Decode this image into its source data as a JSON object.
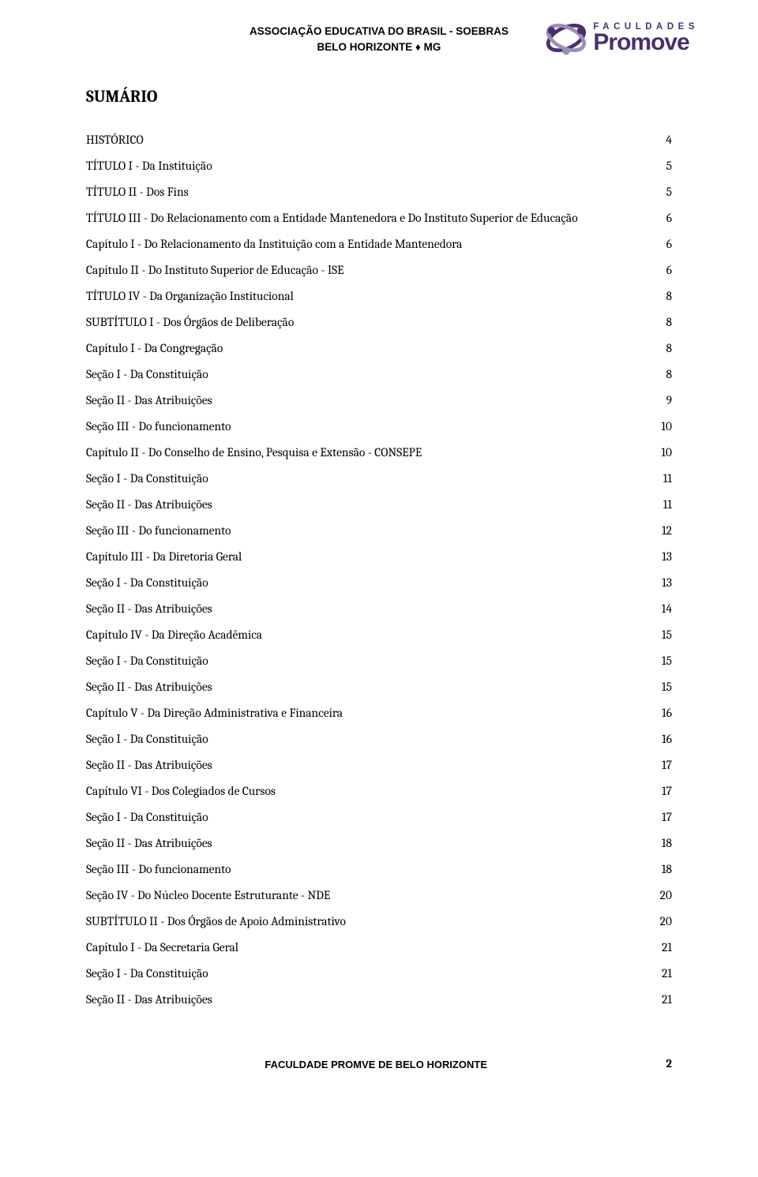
{
  "header": {
    "line1": "ASSOCIAÇÃO EDUCATIVA DO BRASIL - SOEBRAS",
    "line2": "BELO HORIZONTE ♦ MG"
  },
  "logo": {
    "top": "FACULDADES",
    "bottom": "Promove",
    "icon_color1": "#4a2f6e",
    "icon_color2": "#9b8fb5"
  },
  "title": "SUMÁRIO",
  "toc": [
    {
      "label": "HISTÓRICO",
      "page": "4"
    },
    {
      "label": "TÍTULO I - Da Instituição",
      "page": "5"
    },
    {
      "label": "TÍTULO II - Dos Fins",
      "page": "5"
    },
    {
      "label": "TÍTULO III - Do Relacionamento com a Entidade Mantenedora e Do Instituto Superior de Educação",
      "page": "6"
    },
    {
      "label": "Capítulo I - Do Relacionamento da Instituição com a Entidade Mantenedora",
      "page": "6"
    },
    {
      "label": "Capítulo II - Do Instituto Superior de Educação - ISE",
      "page": "6"
    },
    {
      "label": "TÍTULO IV - Da Organização Institucional",
      "page": "8"
    },
    {
      "label": "SUBTÍTULO I - Dos Órgãos de Deliberação",
      "page": "8"
    },
    {
      "label": "Capítulo I - Da Congregação",
      "page": "8"
    },
    {
      "label": "Seção I - Da Constituição",
      "page": "8"
    },
    {
      "label": "Seção II - Das Atribuições",
      "page": "9"
    },
    {
      "label": "Seção III - Do funcionamento",
      "page": "10"
    },
    {
      "label": "Capítulo II - Do Conselho de Ensino, Pesquisa e Extensão - CONSEPE",
      "page": "10"
    },
    {
      "label": "Seção I - Da Constituição",
      "page": "11"
    },
    {
      "label": "Seção II - Das Atribuições",
      "page": "11"
    },
    {
      "label": "Seção III - Do funcionamento",
      "page": "12"
    },
    {
      "label": "Capítulo III - Da Diretoria Geral",
      "page": "13"
    },
    {
      "label": "Seção I - Da Constituição",
      "page": "13"
    },
    {
      "label": "Seção II - Das Atribuições",
      "page": "14"
    },
    {
      "label": "Capítulo IV - Da Direção Acadêmica",
      "page": "15"
    },
    {
      "label": "Seção I - Da Constituição",
      "page": "15"
    },
    {
      "label": "Seção II - Das Atribuições",
      "page": "15"
    },
    {
      "label": "Capítulo V - Da Direção Administrativa e Financeira",
      "page": "16"
    },
    {
      "label": "Seção I - Da Constituição",
      "page": "16"
    },
    {
      "label": "Seção II - Das Atribuições",
      "page": "17"
    },
    {
      "label": "Capítulo VI - Dos Colegiados de Cursos",
      "page": "17"
    },
    {
      "label": "Seção I - Da Constituição",
      "page": "17"
    },
    {
      "label": "Seção II - Das Atribuições",
      "page": "18"
    },
    {
      "label": "Seção III - Do funcionamento",
      "page": "18"
    },
    {
      "label": "Seção IV - Do Núcleo Docente Estruturante - NDE",
      "page": "20"
    },
    {
      "label": "SUBTÍTULO II - Dos Órgãos de Apoio Administrativo",
      "page": "20"
    },
    {
      "label": "Capítulo I - Da Secretaria Geral",
      "page": "21"
    },
    {
      "label": "Seção I - Da Constituição",
      "page": "21"
    },
    {
      "label": "Seção II - Das Atribuições",
      "page": "21"
    }
  ],
  "footer": {
    "center": "FACULDADE PROMVE DE BELO HORIZONTE",
    "page_number": "2"
  }
}
